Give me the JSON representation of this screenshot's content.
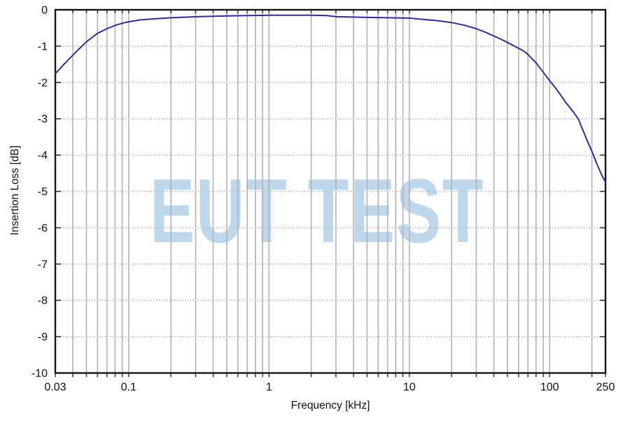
{
  "chart_data": {
    "type": "line",
    "title": "",
    "xlabel": "Frequency [kHz]",
    "ylabel": "Insertion Loss [dB]",
    "x_scale": "log",
    "xlim": [
      0.03,
      250
    ],
    "ylim": [
      -10,
      0
    ],
    "grid": "on",
    "legend": "none",
    "x_ticks": [
      {
        "v": 0.03,
        "label": "0.03"
      },
      {
        "v": 0.1,
        "label": "0.1"
      },
      {
        "v": 1,
        "label": "1"
      },
      {
        "v": 10,
        "label": "10"
      },
      {
        "v": 100,
        "label": "100"
      },
      {
        "v": 250,
        "label": "250"
      }
    ],
    "x_gridlines": [
      0.04,
      0.05,
      0.06,
      0.07,
      0.08,
      0.09,
      0.1,
      0.2,
      0.3,
      0.4,
      0.5,
      0.6,
      0.7,
      0.8,
      0.9,
      1,
      2,
      3,
      4,
      5,
      6,
      7,
      8,
      9,
      10,
      20,
      30,
      40,
      50,
      60,
      70,
      80,
      90,
      100,
      200
    ],
    "y_ticks": [
      {
        "v": 0,
        "label": "0"
      },
      {
        "v": -1,
        "label": "-1"
      },
      {
        "v": -2,
        "label": "-2"
      },
      {
        "v": -3,
        "label": "-3"
      },
      {
        "v": -4,
        "label": "-4"
      },
      {
        "v": -5,
        "label": "-5"
      },
      {
        "v": -6,
        "label": "-6"
      },
      {
        "v": -7,
        "label": "-7"
      },
      {
        "v": -8,
        "label": "-8"
      },
      {
        "v": -9,
        "label": "-9"
      },
      {
        "v": -10,
        "label": "-10"
      }
    ],
    "y_gridlines": [
      -1,
      -2,
      -3,
      -4,
      -5,
      -6,
      -7,
      -8,
      -9
    ],
    "series": [
      {
        "name": "Insertion Loss",
        "color": "#2e2ba6",
        "points": [
          [
            0.03,
            -1.76
          ],
          [
            0.035,
            -1.48
          ],
          [
            0.04,
            -1.25
          ],
          [
            0.045,
            -1.05
          ],
          [
            0.05,
            -0.88
          ],
          [
            0.055,
            -0.76
          ],
          [
            0.06,
            -0.65
          ],
          [
            0.07,
            -0.52
          ],
          [
            0.08,
            -0.43
          ],
          [
            0.09,
            -0.37
          ],
          [
            0.1,
            -0.33
          ],
          [
            0.12,
            -0.28
          ],
          [
            0.15,
            -0.25
          ],
          [
            0.2,
            -0.22
          ],
          [
            0.3,
            -0.19
          ],
          [
            0.4,
            -0.18
          ],
          [
            0.5,
            -0.17
          ],
          [
            0.7,
            -0.16
          ],
          [
            1,
            -0.15
          ],
          [
            1.5,
            -0.15
          ],
          [
            2,
            -0.15
          ],
          [
            2.6,
            -0.16
          ],
          [
            3,
            -0.19
          ],
          [
            4,
            -0.2
          ],
          [
            5,
            -0.21
          ],
          [
            7,
            -0.22
          ],
          [
            10,
            -0.23
          ],
          [
            13,
            -0.27
          ],
          [
            16,
            -0.3
          ],
          [
            20,
            -0.35
          ],
          [
            25,
            -0.43
          ],
          [
            30,
            -0.52
          ],
          [
            35,
            -0.62
          ],
          [
            40,
            -0.72
          ],
          [
            45,
            -0.81
          ],
          [
            50,
            -0.9
          ],
          [
            55,
            -0.98
          ],
          [
            60,
            -1.06
          ],
          [
            65,
            -1.13
          ],
          [
            70,
            -1.23
          ],
          [
            80,
            -1.46
          ],
          [
            90,
            -1.72
          ],
          [
            100,
            -1.95
          ],
          [
            110,
            -2.15
          ],
          [
            120,
            -2.35
          ],
          [
            130,
            -2.55
          ],
          [
            140,
            -2.7
          ],
          [
            150,
            -2.85
          ],
          [
            160,
            -3.0
          ],
          [
            170,
            -3.25
          ],
          [
            185,
            -3.6
          ],
          [
            200,
            -3.9
          ],
          [
            220,
            -4.3
          ],
          [
            235,
            -4.55
          ],
          [
            250,
            -4.75
          ]
        ]
      }
    ],
    "watermark": {
      "text": "EUT TEST",
      "color": "#bdd7ec"
    },
    "colors": {
      "background": "#ffffff",
      "axis_frame": "#141414",
      "grid_vertical": "#b5b5b5",
      "grid_horizontal": "#c3c3c3",
      "tick": "#333333",
      "tick_label": "#111111"
    }
  }
}
